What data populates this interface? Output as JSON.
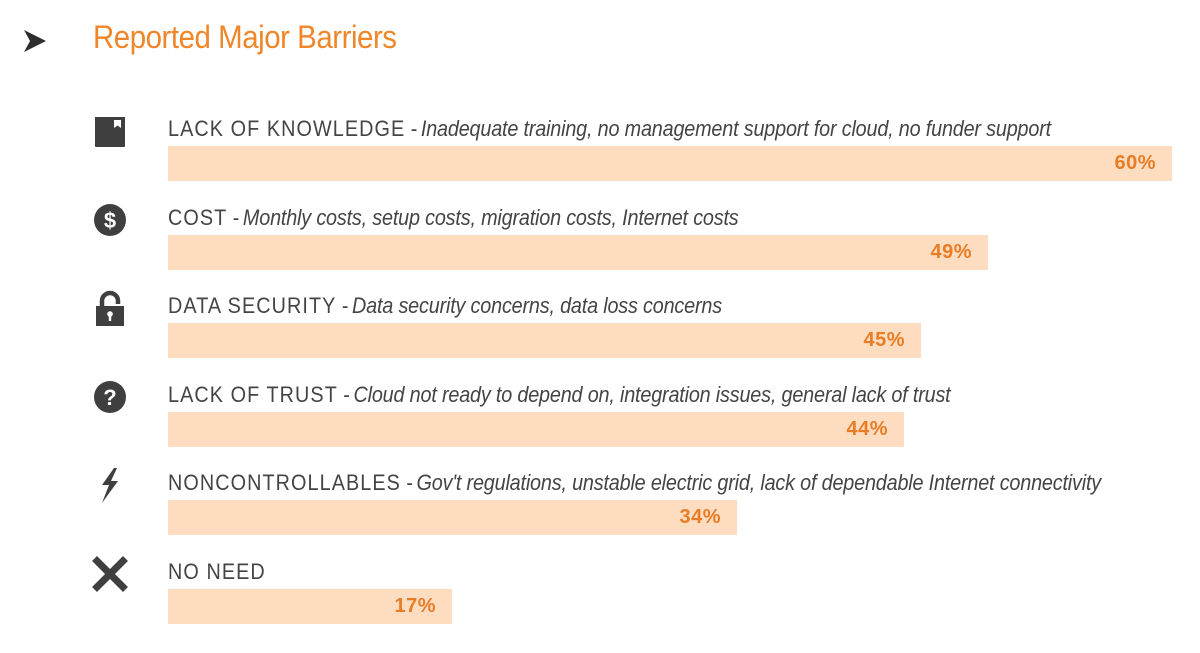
{
  "chart_data": {
    "type": "bar",
    "orientation": "horizontal",
    "title": "Reported Major Barriers",
    "xlim": [
      0,
      60
    ],
    "xlabel": "",
    "ylabel": "",
    "categories": [
      "LACK OF KNOWLEDGE",
      "COST",
      "DATA SECURITY",
      "LACK OF TRUST",
      "NONCONTROLLABLES",
      "NO NEED"
    ],
    "values": [
      60,
      49,
      45,
      44,
      34,
      17
    ],
    "items": [
      {
        "category": "LACK OF KNOWLEDGE",
        "separator": "-",
        "description": "Inadequate training, no management support for cloud, no funder support",
        "value": 60,
        "value_label": "60%",
        "icon": "book-icon"
      },
      {
        "category": "COST",
        "separator": "-",
        "description": "Monthly costs, setup costs, migration costs, Internet costs",
        "value": 49,
        "value_label": "49%",
        "icon": "dollar-icon"
      },
      {
        "category": "DATA SECURITY",
        "separator": "-",
        "description": "Data security concerns, data loss concerns",
        "value": 45,
        "value_label": "45%",
        "icon": "lock-icon"
      },
      {
        "category": "LACK OF TRUST",
        "separator": "-",
        "description": "Cloud not ready to depend on, integration issues, general lack of trust",
        "value": 44,
        "value_label": "44%",
        "icon": "question-icon"
      },
      {
        "category": "NONCONTROLLABLES",
        "separator": "-",
        "description": "Gov't regulations, unstable electric grid, lack of dependable Internet connectivity",
        "value": 34,
        "value_label": "34%",
        "icon": "lightning-icon"
      },
      {
        "category": "NO NEED",
        "separator": "",
        "description": "",
        "value": 17,
        "value_label": "17%",
        "icon": "x-icon"
      }
    ]
  },
  "colors": {
    "title": "#f0862a",
    "bar": "#fddcc0",
    "value_text": "#e87d25",
    "icon": "#3f3f3f",
    "label": "#444444"
  }
}
